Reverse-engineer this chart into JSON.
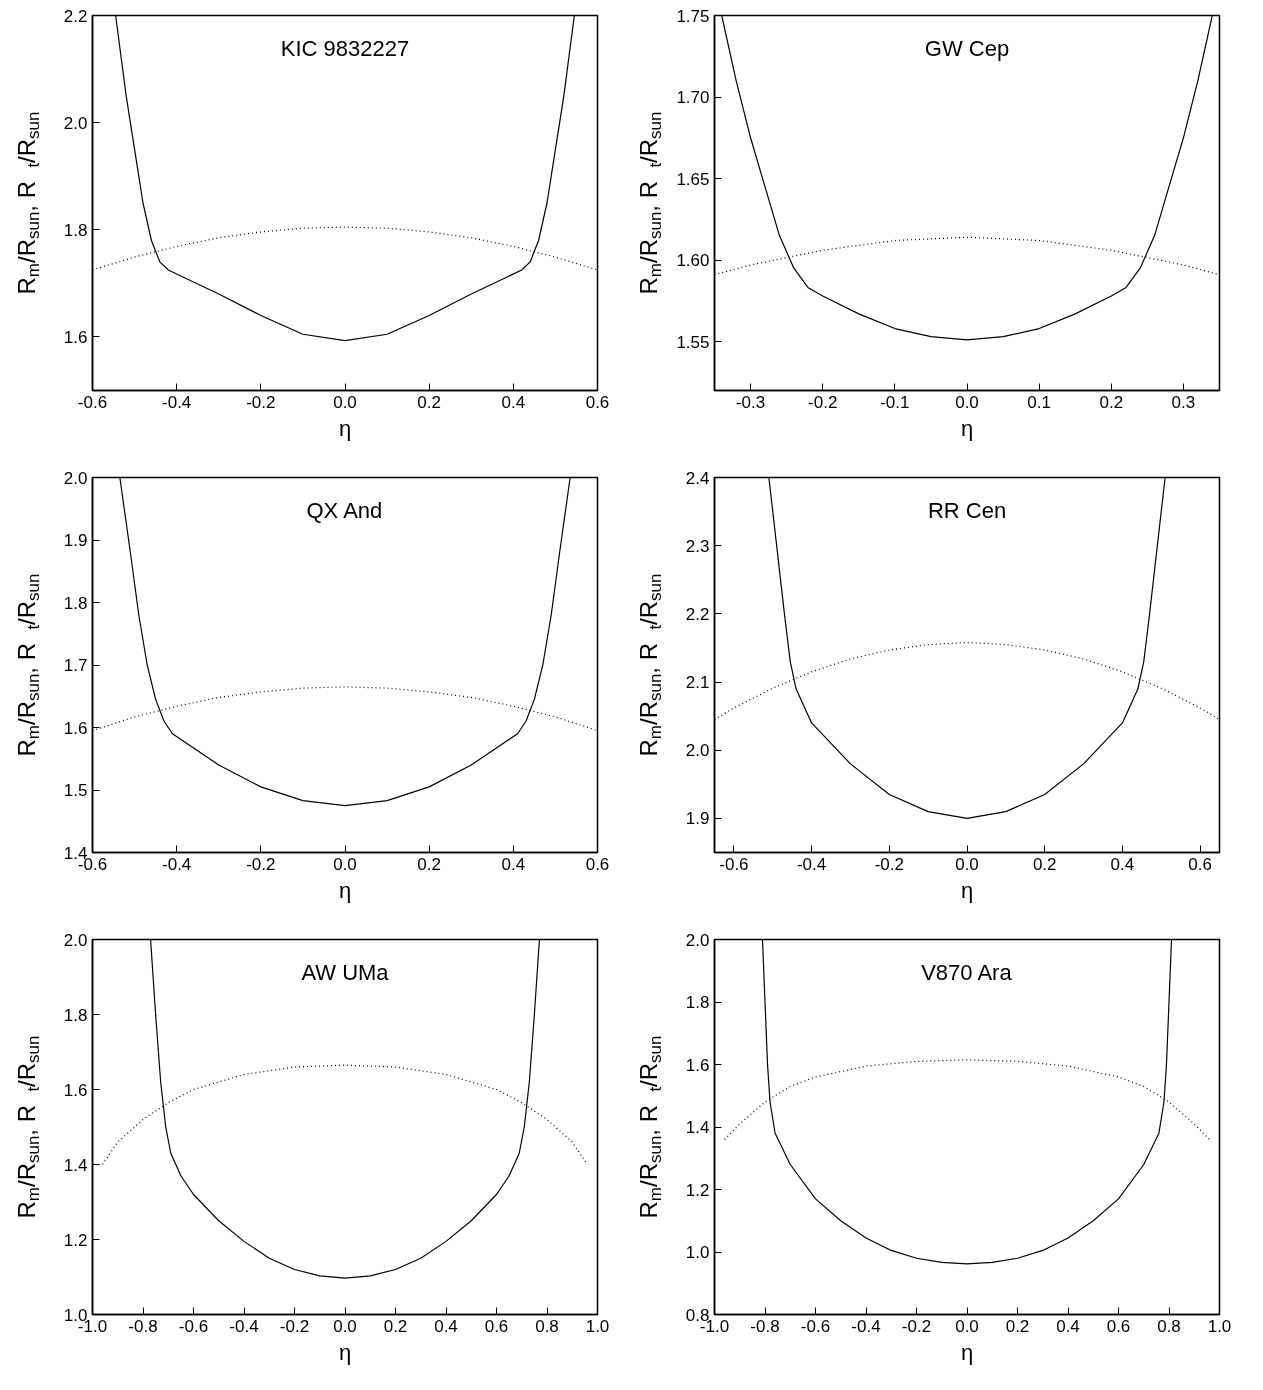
{
  "chart_data": [
    {
      "type": "line",
      "title": "KIC 9832227",
      "xlabel": "η",
      "ylabel": "R$_{m}$/R$_{sun}$,   R$_{t}$/R$_{sun}$",
      "xlim": [
        -0.6,
        0.6
      ],
      "ylim": [
        1.5,
        2.2
      ],
      "xticks": [
        {
          "value": -0.6,
          "label": "-0.6"
        },
        {
          "value": -0.4,
          "label": "-0.4"
        },
        {
          "value": -0.2,
          "label": "-0.2"
        },
        {
          "value": 0,
          "label": "0.0"
        },
        {
          "value": 0.2,
          "label": "0.2"
        },
        {
          "value": 0.4,
          "label": "0.4"
        },
        {
          "value": 0.6,
          "label": "0.6"
        }
      ],
      "yticks": [
        {
          "value": 1.6,
          "label": "1.6"
        },
        {
          "value": 1.8,
          "label": "1.8"
        },
        {
          "value": 2.0,
          "label": "2.0"
        },
        {
          "value": 2.2,
          "label": "2.2"
        }
      ],
      "grid": false,
      "series": [
        {
          "color": "#000000",
          "line_style": "solid",
          "x": [
            -0.545,
            -0.52,
            -0.5,
            -0.48,
            -0.46,
            -0.44,
            -0.42,
            -0.3,
            -0.2,
            -0.1,
            0,
            0.1,
            0.2,
            0.3,
            0.42,
            0.44,
            0.46,
            0.48,
            0.5,
            0.52,
            0.545
          ],
          "values": [
            2.2,
            2.05,
            1.95,
            1.85,
            1.78,
            1.74,
            1.725,
            1.68,
            1.64,
            1.605,
            1.593,
            1.605,
            1.64,
            1.68,
            1.725,
            1.74,
            1.78,
            1.85,
            1.95,
            2.05,
            2.2
          ]
        },
        {
          "color": "#000000",
          "line_style": "dotted",
          "x": [
            -0.6,
            -0.5,
            -0.4,
            -0.3,
            -0.2,
            -0.1,
            0,
            0.1,
            0.2,
            0.3,
            0.4,
            0.5,
            0.6
          ],
          "values": [
            1.725,
            1.749,
            1.769,
            1.785,
            1.796,
            1.803,
            1.805,
            1.803,
            1.796,
            1.785,
            1.769,
            1.749,
            1.725
          ]
        }
      ]
    },
    {
      "type": "line",
      "title": "GW Cep",
      "xlabel": "η",
      "ylabel": "R$_{m}$/R$_{sun}$,   R$_{t}$/R$_{sun}$",
      "xlim": [
        -0.35,
        0.35
      ],
      "ylim": [
        1.52,
        1.75
      ],
      "xticks": [
        {
          "value": -0.3,
          "label": "-0.3"
        },
        {
          "value": -0.2,
          "label": "-0.2"
        },
        {
          "value": -0.1,
          "label": "-0.1"
        },
        {
          "value": 0,
          "label": "0.0"
        },
        {
          "value": 0.1,
          "label": "0.1"
        },
        {
          "value": 0.2,
          "label": "0.2"
        },
        {
          "value": 0.3,
          "label": "0.3"
        }
      ],
      "yticks": [
        {
          "value": 1.55,
          "label": "1.55"
        },
        {
          "value": 1.6,
          "label": "1.60"
        },
        {
          "value": 1.65,
          "label": "1.65"
        },
        {
          "value": 1.7,
          "label": "1.70"
        },
        {
          "value": 1.75,
          "label": "1.75"
        }
      ],
      "grid": false,
      "series": [
        {
          "color": "#000000",
          "line_style": "solid",
          "x": [
            -0.34,
            -0.32,
            -0.3,
            -0.28,
            -0.26,
            -0.24,
            -0.22,
            -0.2,
            -0.15,
            -0.1,
            -0.05,
            0,
            0.05,
            0.1,
            0.15,
            0.2,
            0.22,
            0.24,
            0.26,
            0.28,
            0.3,
            0.32,
            0.34
          ],
          "values": [
            1.75,
            1.71,
            1.675,
            1.645,
            1.615,
            1.595,
            1.583,
            1.578,
            1.567,
            1.558,
            1.553,
            1.551,
            1.553,
            1.558,
            1.567,
            1.578,
            1.583,
            1.595,
            1.615,
            1.645,
            1.675,
            1.71,
            1.75
          ]
        },
        {
          "color": "#000000",
          "line_style": "dotted",
          "x": [
            -0.35,
            -0.3,
            -0.2,
            -0.1,
            0,
            0.1,
            0.2,
            0.3,
            0.35
          ],
          "values": [
            1.591,
            1.597,
            1.606,
            1.612,
            1.614,
            1.612,
            1.606,
            1.597,
            1.591
          ]
        }
      ]
    },
    {
      "type": "line",
      "title": "QX And",
      "xlabel": "η",
      "ylabel": "R$_{m}$/R$_{sun}$,   R$_{t}$/R$_{sun}$",
      "xlim": [
        -0.6,
        0.6
      ],
      "ylim": [
        1.4,
        2.0
      ],
      "xticks": [
        {
          "value": -0.6,
          "label": "-0.6"
        },
        {
          "value": -0.4,
          "label": "-0.4"
        },
        {
          "value": -0.2,
          "label": "-0.2"
        },
        {
          "value": 0,
          "label": "0.0"
        },
        {
          "value": 0.2,
          "label": "0.2"
        },
        {
          "value": 0.4,
          "label": "0.4"
        },
        {
          "value": 0.6,
          "label": "0.6"
        }
      ],
      "yticks": [
        {
          "value": 1.4,
          "label": "1.4"
        },
        {
          "value": 1.5,
          "label": "1.5"
        },
        {
          "value": 1.6,
          "label": "1.6"
        },
        {
          "value": 1.7,
          "label": "1.7"
        },
        {
          "value": 1.8,
          "label": "1.8"
        },
        {
          "value": 1.9,
          "label": "1.9"
        },
        {
          "value": 2.0,
          "label": "2.0"
        }
      ],
      "grid": false,
      "series": [
        {
          "color": "#000000",
          "line_style": "solid",
          "x": [
            -0.535,
            -0.51,
            -0.49,
            -0.47,
            -0.45,
            -0.43,
            -0.41,
            -0.3,
            -0.2,
            -0.1,
            0,
            0.1,
            0.2,
            0.3,
            0.41,
            0.43,
            0.45,
            0.47,
            0.49,
            0.51,
            0.535
          ],
          "values": [
            2.0,
            1.88,
            1.78,
            1.7,
            1.645,
            1.61,
            1.59,
            1.54,
            1.505,
            1.483,
            1.475,
            1.483,
            1.505,
            1.54,
            1.59,
            1.61,
            1.645,
            1.7,
            1.78,
            1.88,
            2.0
          ]
        },
        {
          "color": "#000000",
          "line_style": "dotted",
          "x": [
            -0.6,
            -0.5,
            -0.4,
            -0.3,
            -0.2,
            -0.1,
            0,
            0.1,
            0.2,
            0.3,
            0.4,
            0.5,
            0.6
          ],
          "values": [
            1.595,
            1.617,
            1.634,
            1.648,
            1.657,
            1.663,
            1.665,
            1.663,
            1.657,
            1.648,
            1.634,
            1.617,
            1.595
          ]
        }
      ]
    },
    {
      "type": "line",
      "title": "RR Cen",
      "xlabel": "η",
      "ylabel": "R$_{m}$/R$_{sun}$,   R$_{t}$/R$_{sun}$",
      "xlim": [
        -0.65,
        0.65
      ],
      "ylim": [
        1.85,
        2.4
      ],
      "xticks": [
        {
          "value": -0.6,
          "label": "-0.6"
        },
        {
          "value": -0.4,
          "label": "-0.4"
        },
        {
          "value": -0.2,
          "label": "-0.2"
        },
        {
          "value": 0,
          "label": "0.0"
        },
        {
          "value": 0.2,
          "label": "0.2"
        },
        {
          "value": 0.4,
          "label": "0.4"
        },
        {
          "value": 0.6,
          "label": "0.6"
        }
      ],
      "yticks": [
        {
          "value": 1.9,
          "label": "1.9"
        },
        {
          "value": 2.0,
          "label": "2.0"
        },
        {
          "value": 2.1,
          "label": "2.1"
        },
        {
          "value": 2.2,
          "label": "2.2"
        },
        {
          "value": 2.3,
          "label": "2.3"
        },
        {
          "value": 2.4,
          "label": "2.4"
        }
      ],
      "grid": false,
      "series": [
        {
          "color": "#000000",
          "line_style": "solid",
          "x": [
            -0.51,
            -0.49,
            -0.47,
            -0.455,
            -0.44,
            -0.42,
            -0.4,
            -0.3,
            -0.2,
            -0.1,
            0,
            0.1,
            0.2,
            0.3,
            0.4,
            0.42,
            0.44,
            0.455,
            0.47,
            0.49,
            0.51
          ],
          "values": [
            2.4,
            2.3,
            2.2,
            2.13,
            2.09,
            2.065,
            2.04,
            1.98,
            1.935,
            1.91,
            1.9,
            1.91,
            1.935,
            1.98,
            2.04,
            2.065,
            2.09,
            2.13,
            2.2,
            2.3,
            2.4
          ]
        },
        {
          "color": "#000000",
          "line_style": "dotted",
          "x": [
            -0.65,
            -0.6,
            -0.5,
            -0.4,
            -0.3,
            -0.2,
            -0.1,
            0,
            0.1,
            0.2,
            0.3,
            0.4,
            0.5,
            0.6,
            0.65
          ],
          "values": [
            2.045,
            2.062,
            2.091,
            2.115,
            2.134,
            2.147,
            2.155,
            2.158,
            2.155,
            2.147,
            2.134,
            2.115,
            2.091,
            2.062,
            2.045
          ]
        }
      ]
    },
    {
      "type": "line",
      "title": "AW UMa",
      "xlabel": "η",
      "ylabel": "R$_{m}$/R$_{sun}$,   R$_{t}$/R$_{sun}$",
      "xlim": [
        -1.0,
        1.0
      ],
      "ylim": [
        1.0,
        2.0
      ],
      "xticks": [
        {
          "value": -1.0,
          "label": "-1.0"
        },
        {
          "value": -0.8,
          "label": "-0.8"
        },
        {
          "value": -0.6,
          "label": "-0.6"
        },
        {
          "value": -0.4,
          "label": "-0.4"
        },
        {
          "value": -0.2,
          "label": "-0.2"
        },
        {
          "value": 0,
          "label": "0.0"
        },
        {
          "value": 0.2,
          "label": "0.2"
        },
        {
          "value": 0.4,
          "label": "0.4"
        },
        {
          "value": 0.6,
          "label": "0.6"
        },
        {
          "value": 0.8,
          "label": "0.8"
        },
        {
          "value": 1.0,
          "label": "1.0"
        }
      ],
      "yticks": [
        {
          "value": 1.0,
          "label": "1.0"
        },
        {
          "value": 1.2,
          "label": "1.2"
        },
        {
          "value": 1.4,
          "label": "1.4"
        },
        {
          "value": 1.6,
          "label": "1.6"
        },
        {
          "value": 1.8,
          "label": "1.8"
        },
        {
          "value": 2.0,
          "label": "2.0"
        }
      ],
      "grid": false,
      "series": [
        {
          "color": "#000000",
          "line_style": "solid",
          "x": [
            -0.77,
            -0.75,
            -0.73,
            -0.71,
            -0.69,
            -0.65,
            -0.6,
            -0.5,
            -0.4,
            -0.3,
            -0.2,
            -0.1,
            0,
            0.1,
            0.2,
            0.3,
            0.4,
            0.5,
            0.6,
            0.65,
            0.69,
            0.71,
            0.73,
            0.75,
            0.77
          ],
          "values": [
            2.0,
            1.8,
            1.62,
            1.5,
            1.43,
            1.37,
            1.32,
            1.25,
            1.195,
            1.15,
            1.12,
            1.103,
            1.097,
            1.103,
            1.12,
            1.15,
            1.195,
            1.25,
            1.32,
            1.37,
            1.43,
            1.5,
            1.62,
            1.8,
            2.0
          ]
        },
        {
          "color": "#000000",
          "line_style": "dotted",
          "x": [
            -0.96,
            -0.9,
            -0.8,
            -0.7,
            -0.6,
            -0.4,
            -0.2,
            0,
            0.2,
            0.4,
            0.6,
            0.7,
            0.8,
            0.9,
            0.96
          ],
          "values": [
            1.4,
            1.46,
            1.52,
            1.565,
            1.6,
            1.64,
            1.66,
            1.665,
            1.66,
            1.64,
            1.6,
            1.565,
            1.52,
            1.46,
            1.4
          ]
        }
      ]
    },
    {
      "type": "line",
      "title": "V870 Ara",
      "xlabel": "η",
      "ylabel": "R$_{m}$/R$_{sun}$,   R$_{t}$/R$_{sun}$",
      "xlim": [
        -1.0,
        1.0
      ],
      "ylim": [
        0.8,
        2.0
      ],
      "xticks": [
        {
          "value": -1.0,
          "label": "-1.0"
        },
        {
          "value": -0.8,
          "label": "-0.8"
        },
        {
          "value": -0.6,
          "label": "-0.6"
        },
        {
          "value": -0.4,
          "label": "-0.4"
        },
        {
          "value": -0.2,
          "label": "-0.2"
        },
        {
          "value": 0,
          "label": "0.0"
        },
        {
          "value": 0.2,
          "label": "0.2"
        },
        {
          "value": 0.4,
          "label": "0.4"
        },
        {
          "value": 0.6,
          "label": "0.6"
        },
        {
          "value": 0.8,
          "label": "0.8"
        },
        {
          "value": 1.0,
          "label": "1.0"
        }
      ],
      "yticks": [
        {
          "value": 0.8,
          "label": "0.8"
        },
        {
          "value": 1.0,
          "label": "1.0"
        },
        {
          "value": 1.2,
          "label": "1.2"
        },
        {
          "value": 1.4,
          "label": "1.4"
        },
        {
          "value": 1.6,
          "label": "1.6"
        },
        {
          "value": 1.8,
          "label": "1.8"
        },
        {
          "value": 2.0,
          "label": "2.0"
        }
      ],
      "grid": false,
      "series": [
        {
          "color": "#000000",
          "line_style": "solid",
          "x": [
            -0.81,
            -0.8,
            -0.79,
            -0.78,
            -0.76,
            -0.7,
            -0.6,
            -0.5,
            -0.4,
            -0.3,
            -0.2,
            -0.1,
            0,
            0.1,
            0.2,
            0.3,
            0.4,
            0.5,
            0.6,
            0.7,
            0.76,
            0.78,
            0.79,
            0.8,
            0.81
          ],
          "values": [
            2.0,
            1.8,
            1.6,
            1.48,
            1.38,
            1.28,
            1.17,
            1.1,
            1.045,
            1.005,
            0.98,
            0.967,
            0.962,
            0.967,
            0.98,
            1.005,
            1.045,
            1.1,
            1.17,
            1.28,
            1.38,
            1.48,
            1.6,
            1.8,
            2.0
          ]
        },
        {
          "color": "#000000",
          "line_style": "dotted",
          "x": [
            -0.96,
            -0.9,
            -0.8,
            -0.7,
            -0.6,
            -0.4,
            -0.2,
            0,
            0.2,
            0.4,
            0.6,
            0.7,
            0.8,
            0.9,
            0.96
          ],
          "values": [
            1.36,
            1.41,
            1.48,
            1.53,
            1.56,
            1.595,
            1.61,
            1.615,
            1.61,
            1.595,
            1.56,
            1.53,
            1.48,
            1.41,
            1.36
          ]
        }
      ]
    }
  ]
}
